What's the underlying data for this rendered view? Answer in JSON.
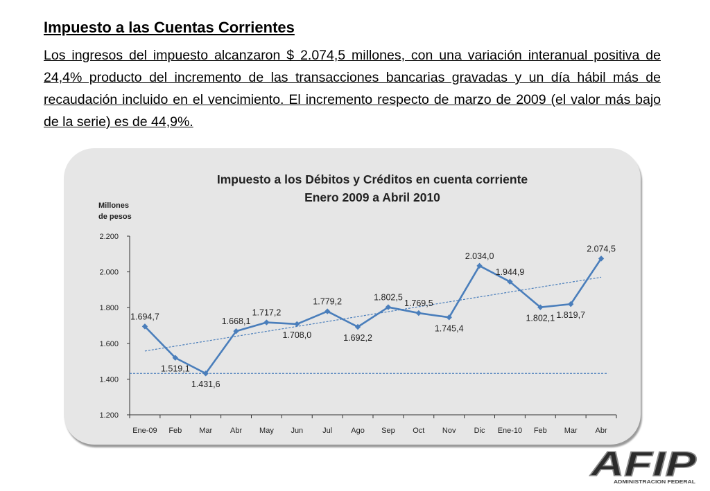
{
  "heading": "Impuesto a las Cuentas Corrientes",
  "paragraph": "Los ingresos del impuesto alcanzaron $ 2.074,5 millones, con una variación interanual positiva de 24,4% producto del incremento de las transacciones bancarias gravadas y un día hábil más de recaudación incluido en el vencimiento.  El incremento respecto de marzo de 2009 (el valor más bajo de la serie) es de 44,9%.",
  "logo": {
    "text": "AFIP",
    "subtext": "ADMINISTRACION FEDERAL"
  },
  "colors": {
    "series": "#4a7ebb",
    "panel": "#e6e6e6"
  },
  "chart_data": {
    "type": "line",
    "title": "Impuesto a los Débitos y Créditos en cuenta corriente",
    "subtitle": "Enero 2009 a Abril 2010",
    "ylabel": "Millones de pesos",
    "ylabel_lines": [
      "Millones",
      "de pesos"
    ],
    "categories": [
      "Ene-09",
      "Feb",
      "Mar",
      "Abr",
      "May",
      "Jun",
      "Jul",
      "Ago",
      "Sep",
      "Oct",
      "Nov",
      "Dic",
      "Ene-10",
      "Feb",
      "Mar",
      "Abr"
    ],
    "values": [
      1694.7,
      1519.1,
      1431.6,
      1668.1,
      1717.2,
      1708.0,
      1779.2,
      1692.2,
      1802.5,
      1769.5,
      1745.4,
      2034.0,
      1944.9,
      1802.1,
      1819.7,
      2074.5
    ],
    "value_labels": [
      "1.694,7",
      "1.519,1",
      "1.431,6",
      "1.668,1",
      "1.717,2",
      "1.708,0",
      "1.779,2",
      "1.692,2",
      "1.802,5",
      "1.769,5",
      "1.745,4",
      "2.034,0",
      "1.944,9",
      "1.802,1",
      "1.819,7",
      "2.074,5"
    ],
    "label_side": [
      "above",
      "below",
      "below",
      "above",
      "above",
      "below",
      "above",
      "below",
      "above",
      "above",
      "below",
      "above",
      "above",
      "below",
      "below",
      "above"
    ],
    "yticks": [
      1200,
      1400,
      1600,
      1800,
      2000,
      2200
    ],
    "ytick_labels": [
      "1.200",
      "1.400",
      "1.600",
      "1.800",
      "2.000",
      "2.200"
    ],
    "ylim": [
      1200,
      2200
    ],
    "trendline": {
      "style": "dashed",
      "start": 1557,
      "end": 1970
    },
    "reference_line": {
      "style": "dashed",
      "value": 1431.6
    },
    "grid": false,
    "legend": "none"
  }
}
